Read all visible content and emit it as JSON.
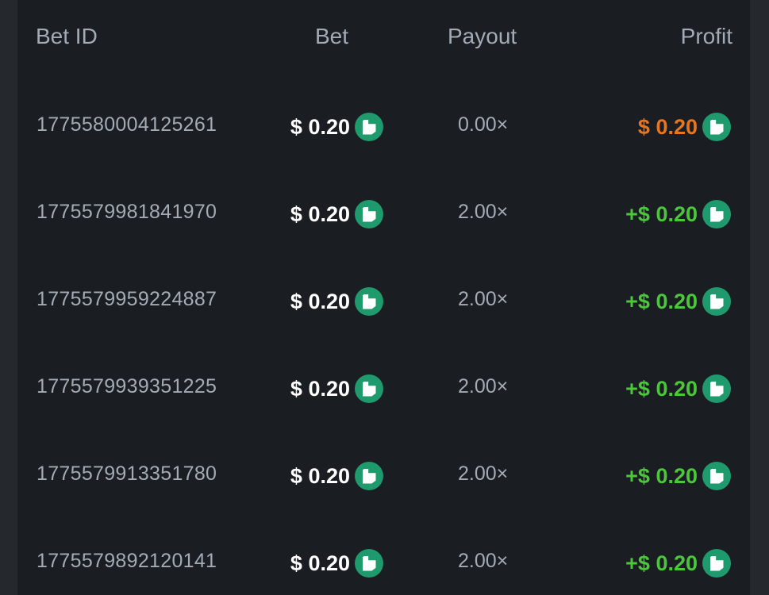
{
  "header": {
    "bet_id": "Bet ID",
    "bet": "Bet",
    "payout": "Payout",
    "profit": "Profit"
  },
  "colors": {
    "loss": "#e8761e",
    "win": "#4cc63a",
    "coin": "#1f9a6c"
  },
  "rows": [
    {
      "id": "1775580004125261",
      "bet": "$ 0.20",
      "payout": "0.00×",
      "profit": "$ 0.20",
      "result": "loss"
    },
    {
      "id": "1775579981841970",
      "bet": "$ 0.20",
      "payout": "2.00×",
      "profit": "+$ 0.20",
      "result": "win"
    },
    {
      "id": "1775579959224887",
      "bet": "$ 0.20",
      "payout": "2.00×",
      "profit": "+$ 0.20",
      "result": "win"
    },
    {
      "id": "1775579939351225",
      "bet": "$ 0.20",
      "payout": "2.00×",
      "profit": "+$ 0.20",
      "result": "win"
    },
    {
      "id": "1775579913351780",
      "bet": "$ 0.20",
      "payout": "2.00×",
      "profit": "+$ 0.20",
      "result": "win"
    },
    {
      "id": "1775579892120141",
      "bet": "$ 0.20",
      "payout": "2.00×",
      "profit": "+$ 0.20",
      "result": "win"
    }
  ]
}
